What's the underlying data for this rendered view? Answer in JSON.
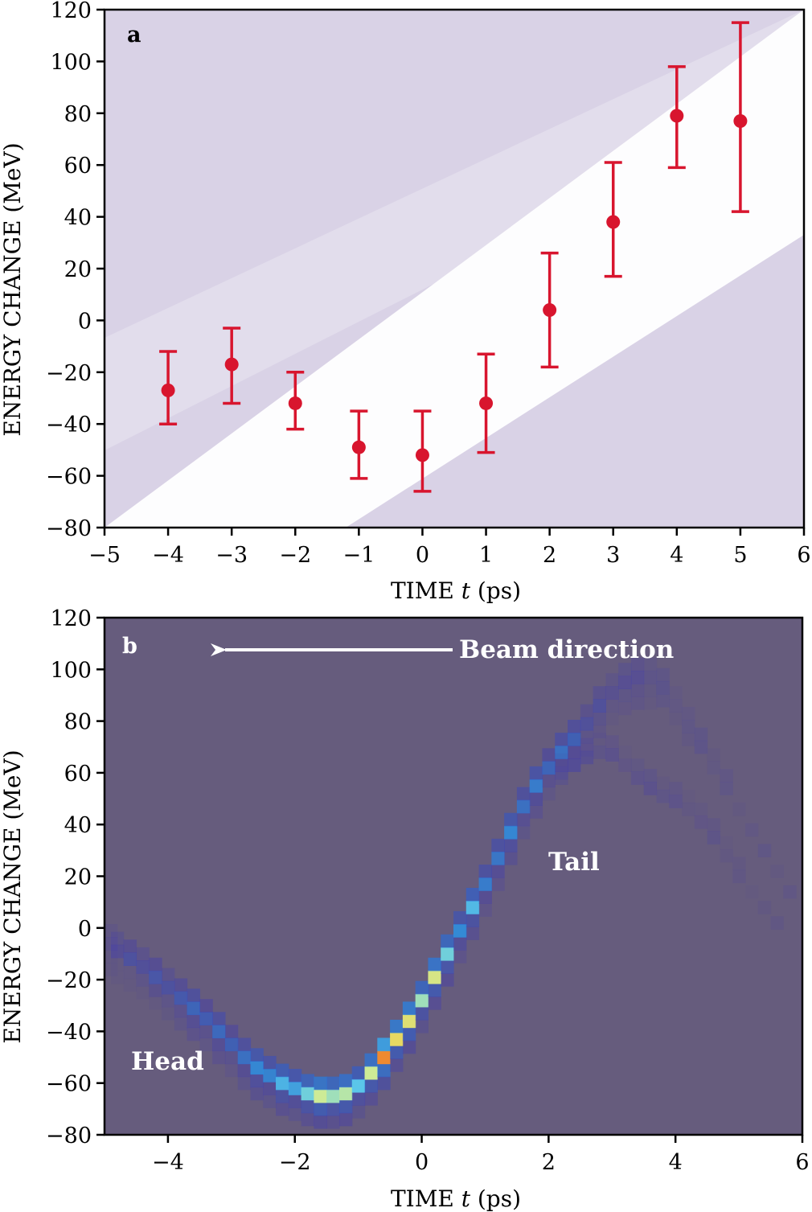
{
  "chart_data": [
    {
      "type": "scatter",
      "panel": "a",
      "xlabel_prefix": "TIME ",
      "xlabel_var": "t",
      "xlabel_unit": " (ps)",
      "ylabel": "ENERGY CHANGE (MeV)",
      "xlim": [
        -5,
        6
      ],
      "ylim": [
        -80,
        120
      ],
      "xticks": [
        -5,
        -4,
        -3,
        -2,
        -1,
        0,
        1,
        2,
        3,
        4,
        5,
        6
      ],
      "xtick_labels": [
        "−5",
        "−4",
        "−3",
        "−2",
        "−1",
        "0",
        "1",
        "2",
        "3",
        "4",
        "5",
        "6"
      ],
      "yticks": [
        -80,
        -60,
        -40,
        -20,
        0,
        20,
        40,
        60,
        80,
        100,
        120
      ],
      "ytick_labels": [
        "−80",
        "−60",
        "−40",
        "−20",
        "0",
        "20",
        "40",
        "60",
        "80",
        "100",
        "120"
      ],
      "point_color": "#d8152e",
      "points": [
        {
          "x": -4,
          "y": -27,
          "lo": -40,
          "hi": -12
        },
        {
          "x": -3,
          "y": -17,
          "lo": -32,
          "hi": -3
        },
        {
          "x": -2,
          "y": -32,
          "lo": -42,
          "hi": -20
        },
        {
          "x": -1,
          "y": -49,
          "lo": -61,
          "hi": -35
        },
        {
          "x": 0,
          "y": -52,
          "lo": -66,
          "hi": -35
        },
        {
          "x": 1,
          "y": -32,
          "lo": -51,
          "hi": -13
        },
        {
          "x": 2,
          "y": 4,
          "lo": -18,
          "hi": 26
        },
        {
          "x": 3,
          "y": 38,
          "lo": 17,
          "hi": 61
        },
        {
          "x": 4,
          "y": 79,
          "lo": 59,
          "hi": 98
        },
        {
          "x": 5,
          "y": 77,
          "lo": 42,
          "hi": 115
        }
      ]
    },
    {
      "type": "heatmap",
      "panel": "b",
      "xlabel_prefix": "TIME ",
      "xlabel_var": "t",
      "xlabel_unit": " (ps)",
      "ylabel": "ENERGY CHANGE (MeV)",
      "xlim": [
        -5,
        6
      ],
      "ylim": [
        -80,
        120
      ],
      "xticks": [
        -4,
        -2,
        0,
        2,
        4,
        6
      ],
      "xtick_labels": [
        "−4",
        "−2",
        "0",
        "2",
        "4",
        "6"
      ],
      "yticks": [
        -80,
        -60,
        -40,
        -20,
        0,
        20,
        40,
        60,
        80,
        100,
        120
      ],
      "ytick_labels": [
        "−80",
        "−60",
        "−40",
        "−20",
        "0",
        "20",
        "40",
        "60",
        "80",
        "100",
        "120"
      ],
      "background_color": "#665c7d",
      "annotations": {
        "beam_direction": "Beam direction",
        "head": "Head",
        "tail": "Tail"
      },
      "main_band": [
        [
          -5.0,
          -6,
          0.15
        ],
        [
          -4.8,
          -9,
          0.2
        ],
        [
          -4.6,
          -12,
          0.22
        ],
        [
          -4.4,
          -15,
          0.25
        ],
        [
          -4.2,
          -19,
          0.28
        ],
        [
          -4.0,
          -23,
          0.3
        ],
        [
          -3.8,
          -27,
          0.32
        ],
        [
          -3.6,
          -31,
          0.34
        ],
        [
          -3.4,
          -35,
          0.36
        ],
        [
          -3.2,
          -40,
          0.38
        ],
        [
          -3.0,
          -45,
          0.4
        ],
        [
          -2.8,
          -50,
          0.42
        ],
        [
          -2.6,
          -54,
          0.45
        ],
        [
          -2.4,
          -57,
          0.5
        ],
        [
          -2.2,
          -60,
          0.55
        ],
        [
          -2.0,
          -62,
          0.58
        ],
        [
          -1.8,
          -64,
          0.62
        ],
        [
          -1.6,
          -65,
          0.66
        ],
        [
          -1.4,
          -65,
          0.68
        ],
        [
          -1.2,
          -64,
          0.66
        ],
        [
          -1.0,
          -61,
          0.64
        ],
        [
          -0.8,
          -56,
          0.7
        ],
        [
          -0.6,
          -50,
          0.82
        ],
        [
          -0.4,
          -43,
          0.78
        ],
        [
          -0.2,
          -36,
          0.72
        ],
        [
          0.0,
          -28,
          0.7
        ],
        [
          0.2,
          -19,
          0.72
        ],
        [
          0.4,
          -10,
          0.58
        ],
        [
          0.6,
          -1,
          0.52
        ],
        [
          0.8,
          8,
          0.56
        ],
        [
          1.0,
          17,
          0.5
        ],
        [
          1.2,
          27,
          0.44
        ],
        [
          1.4,
          37,
          0.45
        ],
        [
          1.6,
          47,
          0.44
        ],
        [
          1.8,
          55,
          0.44
        ],
        [
          2.0,
          62,
          0.42
        ],
        [
          2.2,
          68,
          0.42
        ],
        [
          2.4,
          73,
          0.32
        ],
        [
          2.6,
          79,
          0.26
        ],
        [
          2.8,
          86,
          0.22
        ],
        [
          3.0,
          91,
          0.2
        ],
        [
          3.2,
          95,
          0.18
        ],
        [
          3.4,
          97,
          0.14
        ],
        [
          3.6,
          97,
          0.12
        ],
        [
          3.8,
          93,
          0.1
        ],
        [
          4.0,
          86,
          0.08
        ],
        [
          4.2,
          78,
          0.07
        ],
        [
          4.4,
          70,
          0.06
        ],
        [
          4.6,
          62,
          0.05
        ],
        [
          4.8,
          54,
          0.05
        ],
        [
          5.0,
          46,
          0.04
        ],
        [
          5.2,
          38,
          0.04
        ],
        [
          5.4,
          30,
          0.03
        ],
        [
          5.6,
          22,
          0.03
        ],
        [
          5.8,
          14,
          0.03
        ],
        [
          6.0,
          6,
          0.02
        ]
      ],
      "branch_band": [
        [
          2.2,
          60,
          0.16
        ],
        [
          2.4,
          63,
          0.16
        ],
        [
          2.6,
          66,
          0.15
        ],
        [
          2.8,
          68,
          0.14
        ],
        [
          3.0,
          67,
          0.14
        ],
        [
          3.2,
          63,
          0.13
        ],
        [
          3.4,
          58,
          0.13
        ],
        [
          3.6,
          54,
          0.12
        ],
        [
          3.8,
          51,
          0.12
        ],
        [
          4.0,
          49,
          0.11
        ],
        [
          4.2,
          46,
          0.1
        ],
        [
          4.4,
          41,
          0.09
        ],
        [
          4.6,
          35,
          0.08
        ],
        [
          4.8,
          28,
          0.07
        ],
        [
          5.0,
          20,
          0.06
        ],
        [
          5.2,
          14,
          0.05
        ],
        [
          5.4,
          8,
          0.05
        ],
        [
          5.6,
          2,
          0.04
        ]
      ]
    }
  ]
}
